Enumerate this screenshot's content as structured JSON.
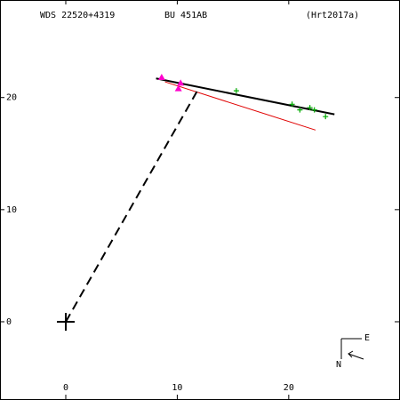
{
  "chart_data": {
    "type": "scatter",
    "title_left": "WDS 22520+4319",
    "title_center": "BU  451AB",
    "title_right": "(Hrt2017a)",
    "xlim": [
      -5.9,
      29.9
    ],
    "ylim": [
      -6.9,
      28.7
    ],
    "xticks": [
      0,
      10,
      20
    ],
    "yticks": [
      0,
      10,
      20
    ],
    "lines": [
      {
        "color": "#000000",
        "width": 2,
        "dash": false,
        "x": [
          8.1,
          24.1
        ],
        "y": [
          21.7,
          18.5
        ]
      },
      {
        "color": "#e00000",
        "width": 1,
        "dash": false,
        "x": [
          8.9,
          22.4
        ],
        "y": [
          21.4,
          17.1
        ]
      },
      {
        "color": "#000000",
        "width": 2,
        "dash": true,
        "x": [
          0,
          11.8
        ],
        "y": [
          0,
          20.6
        ]
      }
    ],
    "series": [
      {
        "color": "#ff00cc",
        "marker": "triangle",
        "x": [
          8.6,
          10.3,
          10.1
        ],
        "y": [
          21.8,
          21.3,
          20.8
        ]
      },
      {
        "color": "#00aa00",
        "marker": "plus",
        "x": [
          15.3,
          20.3,
          21.0,
          21.9,
          22.3,
          23.3
        ],
        "y": [
          20.6,
          19.4,
          18.9,
          19.1,
          18.9,
          18.3
        ]
      },
      {
        "color": "#000000",
        "marker": "bigplus",
        "x": [
          0
        ],
        "y": [
          0
        ]
      }
    ],
    "compass": {
      "east": "E",
      "north": "N"
    }
  }
}
